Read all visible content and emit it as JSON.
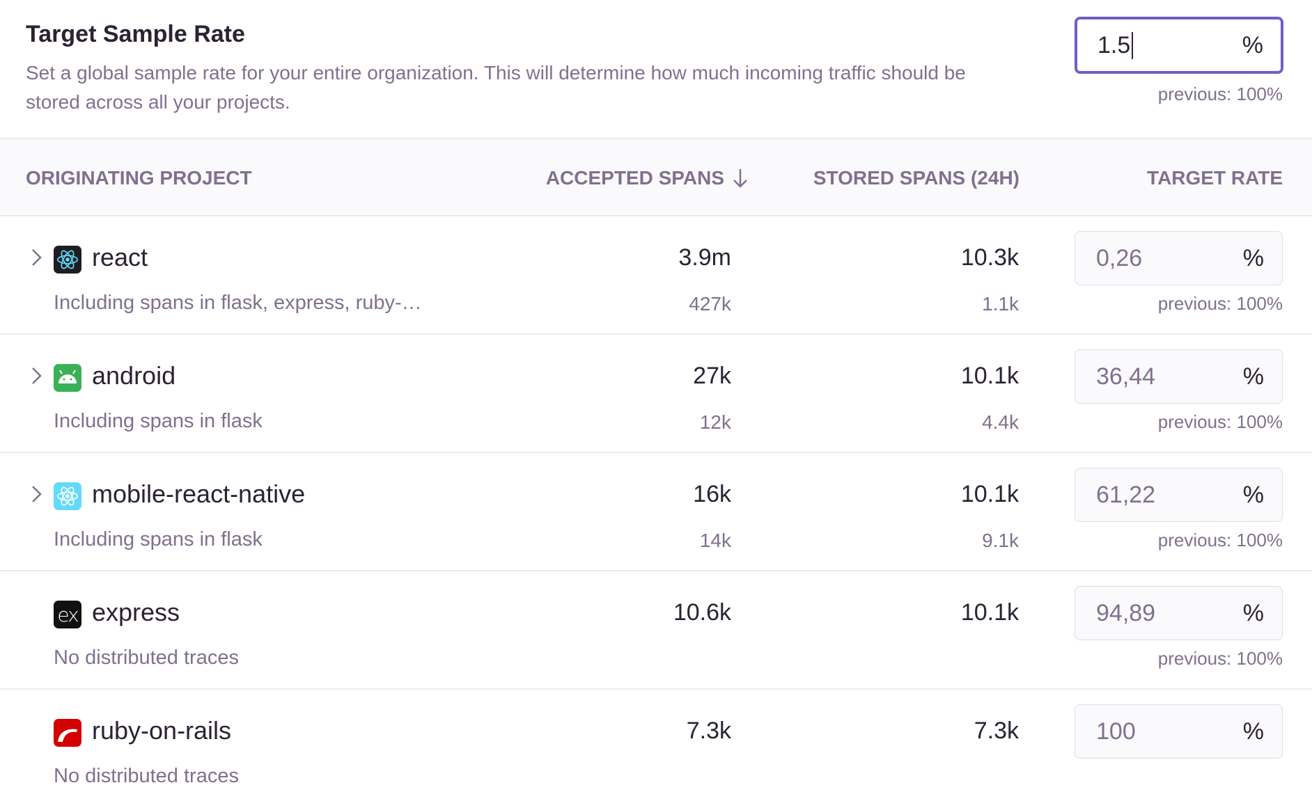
{
  "header": {
    "title": "Target Sample Rate",
    "description": "Set a global sample rate for your entire organization. This will determine how much incoming traffic should be stored across all your projects.",
    "input_value": "1.5",
    "unit": "%",
    "previous": "previous: 100%"
  },
  "colors": {
    "accent": "#6c5fc7",
    "muted": "#80708f",
    "text": "#2b2233"
  },
  "table": {
    "columns": [
      "Originating Project",
      "Accepted Spans",
      "Stored Spans (24h)",
      "Target Rate"
    ],
    "sort": {
      "column": "Accepted Spans",
      "direction": "descending",
      "icon": "arrow-down-icon"
    },
    "rows": [
      {
        "name": "react",
        "icon": "react-icon",
        "expandable": true,
        "subtitle": "Including spans in flask, express, ruby-…",
        "accepted": "3.9m",
        "accepted_sub": "427k",
        "stored": "10.3k",
        "stored_sub": "1.1k",
        "rate": "0,26",
        "unit": "%",
        "previous": "previous: 100%"
      },
      {
        "name": "android",
        "icon": "android-icon",
        "expandable": true,
        "subtitle": "Including spans in flask",
        "accepted": "27k",
        "accepted_sub": "12k",
        "stored": "10.1k",
        "stored_sub": "4.4k",
        "rate": "36,44",
        "unit": "%",
        "previous": "previous: 100%"
      },
      {
        "name": "mobile-react-native",
        "icon": "react-native-icon",
        "expandable": true,
        "subtitle": "Including spans in flask",
        "accepted": "16k",
        "accepted_sub": "14k",
        "stored": "10.1k",
        "stored_sub": "9.1k",
        "rate": "61,22",
        "unit": "%",
        "previous": "previous: 100%"
      },
      {
        "name": "express",
        "icon": "express-icon",
        "expandable": false,
        "subtitle": "No distributed traces",
        "accepted": "10.6k",
        "accepted_sub": "",
        "stored": "10.1k",
        "stored_sub": "",
        "rate": "94,89",
        "unit": "%",
        "previous": "previous: 100%"
      },
      {
        "name": "ruby-on-rails",
        "icon": "rails-icon",
        "expandable": false,
        "subtitle": "No distributed traces",
        "accepted": "7.3k",
        "accepted_sub": "",
        "stored": "7.3k",
        "stored_sub": "",
        "rate": "100",
        "unit": "%",
        "previous": ""
      }
    ]
  }
}
